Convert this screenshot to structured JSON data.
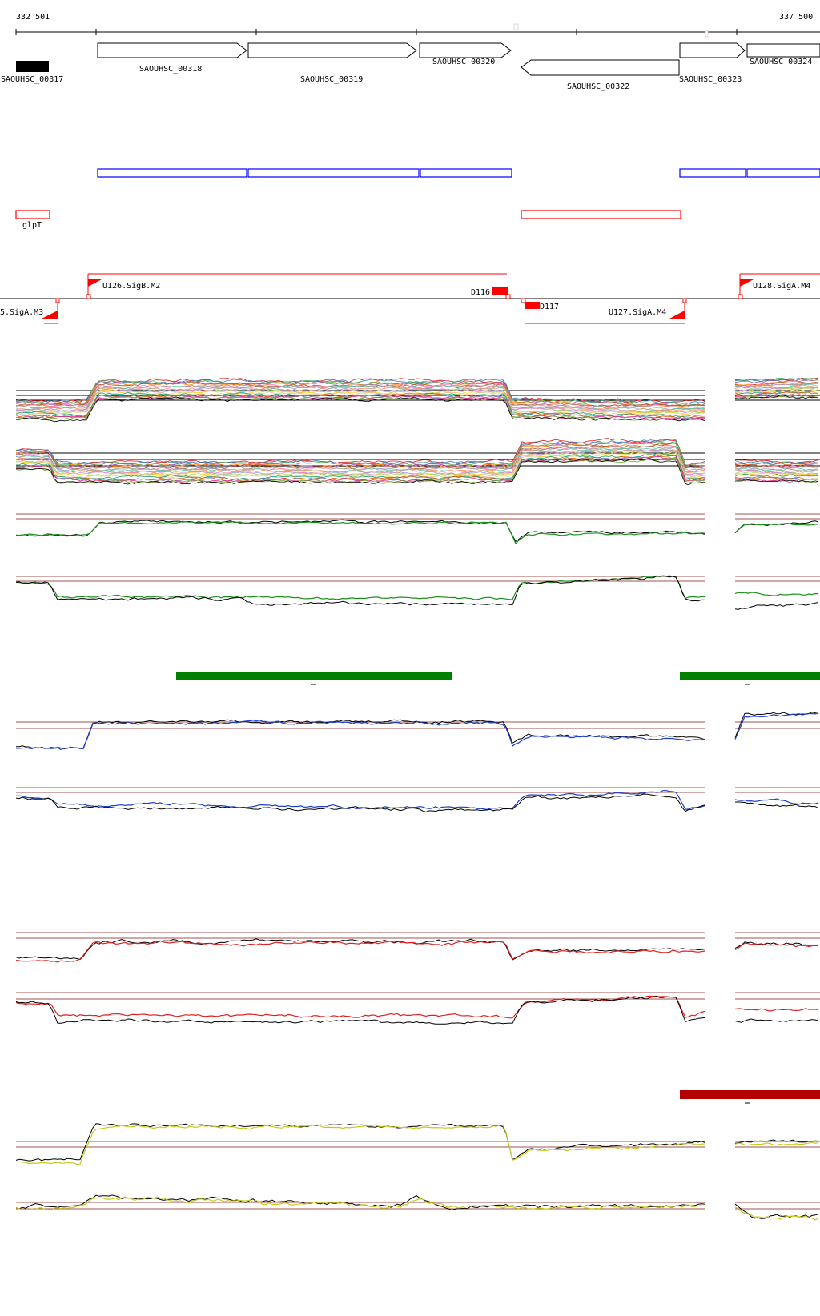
{
  "ruler": {
    "start_label": "332 501",
    "end_label": "337 500"
  },
  "genes": [
    {
      "id": "SAOUHSC_00317",
      "strand": "+",
      "style": "filled"
    },
    {
      "id": "SAOUHSC_00318",
      "strand": "+",
      "style": "arrow"
    },
    {
      "id": "SAOUHSC_00319",
      "strand": "+",
      "style": "arrow"
    },
    {
      "id": "SAOUHSC_00320",
      "strand": "+",
      "style": "arrow"
    },
    {
      "id": "SAOUHSC_00322",
      "strand": "-",
      "style": "arrow"
    },
    {
      "id": "SAOUHSC_00323",
      "strand": "+",
      "style": "arrow"
    },
    {
      "id": "SAOUHSC_00324",
      "strand": "+",
      "style": "arrow"
    }
  ],
  "operon_label": "glpT",
  "features": {
    "U126": "U126.SigB.M2",
    "U128": "U128.SigA.M4",
    "U127": "U127.SigA.M4",
    "U125": "5.SigA.M3",
    "D116": "D116",
    "D117": "D117"
  },
  "colors": {
    "gene_filled": "#000000",
    "blue_box": "#0000ff",
    "red_box": "#ff0000",
    "marker": "#ff0000",
    "green_bar": "#008000",
    "darkred_bar": "#b30000",
    "threshold": "#a05050",
    "panel_green": "#1a8f1a",
    "panel_blue": "#1a3fcc",
    "panel_red": "#e02020",
    "panel_yellow": "#c8c81a"
  },
  "panels": [
    "multi-up",
    "multi-down",
    "green-up",
    "green-down",
    "blue-up",
    "blue-down",
    "red-up",
    "red-down",
    "yellow-up",
    "yellow-down"
  ]
}
